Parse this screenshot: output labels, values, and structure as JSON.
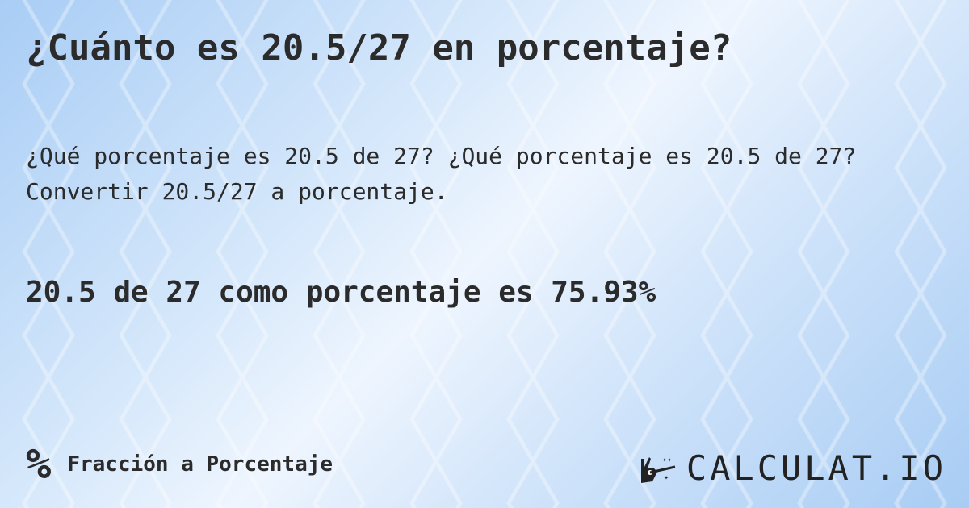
{
  "title": "¿Cuánto es 20.5/27 en porcentaje?",
  "description": "¿Qué porcentaje es 20.5 de 27? ¿Qué porcentaje es 20.5 de 27? Convertir 20.5/27 a porcentaje.",
  "result": "20.5 de 27 como porcentaje es 75.93%",
  "category": {
    "icon": "percent-icon",
    "symbol": "%",
    "label": "Fracción a Porcentaje"
  },
  "logo": {
    "text": "CALCULAT.IO",
    "icon": "magic-hand-wand-icon"
  }
}
